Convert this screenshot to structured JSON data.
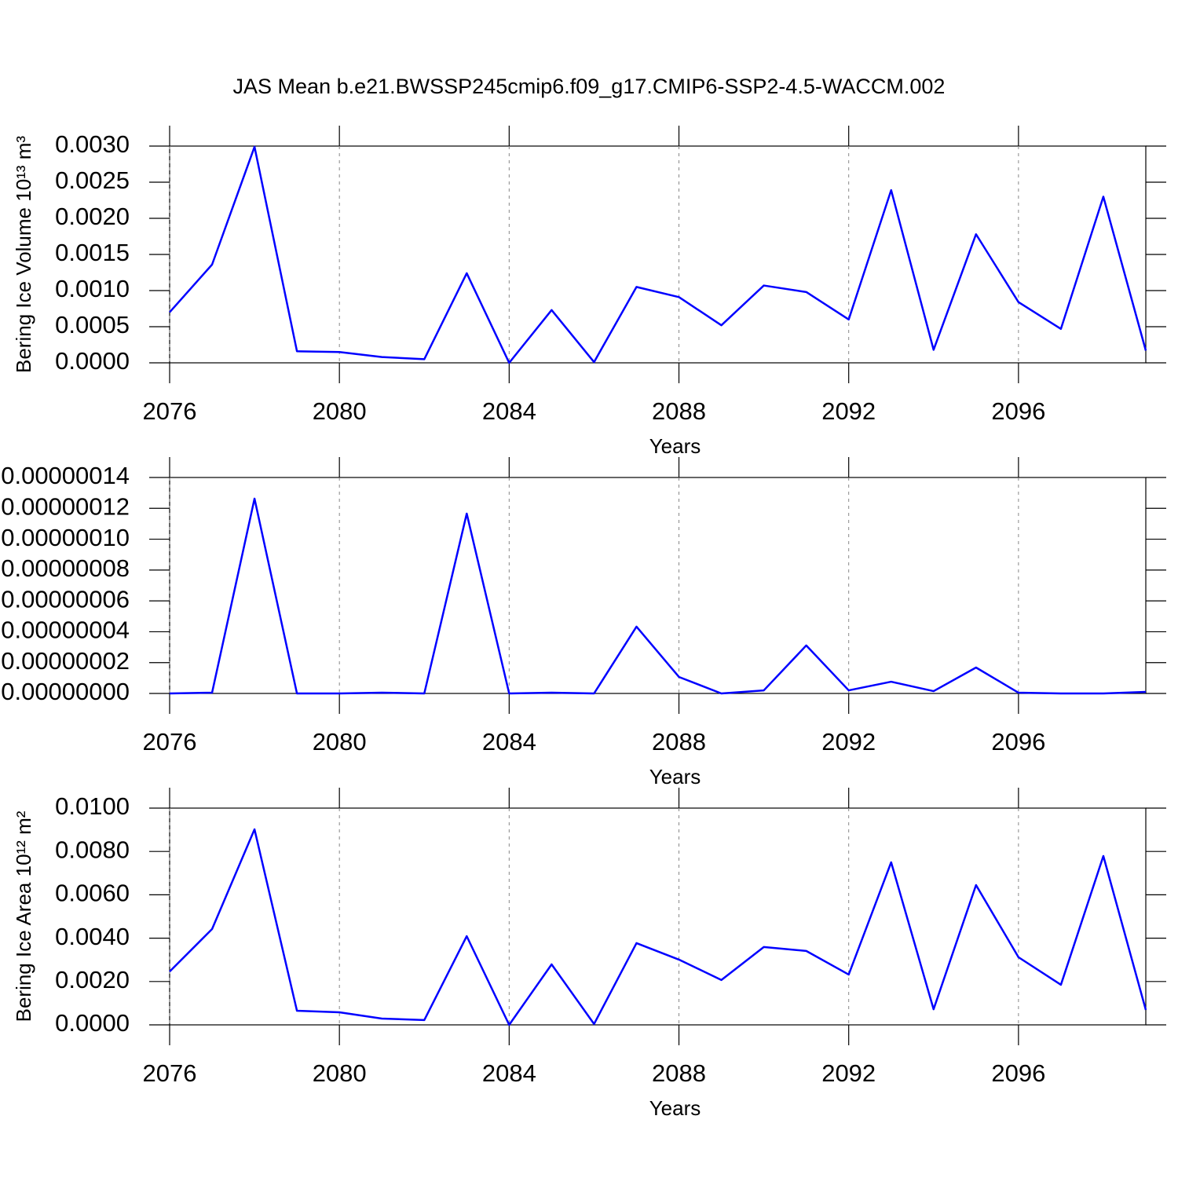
{
  "chart_data": [
    {
      "type": "line",
      "title": "JAS Mean b.e21.BWSSP245cmip6.f09_g17.CMIP6-SSP2-4.5-WACCM.002",
      "ylabel": "Bering Ice Volume 10¹³ m³",
      "xlabel": "Years",
      "grid": true,
      "x": [
        2076,
        2077,
        2078,
        2079,
        2080,
        2081,
        2082,
        2083,
        2084,
        2085,
        2086,
        2087,
        2088,
        2089,
        2090,
        2091,
        2092,
        2093,
        2094,
        2095,
        2096,
        2097,
        2098,
        2099
      ],
      "series": [
        {
          "color": "#0000ff",
          "values": [
            0.0007,
            0.00136,
            0.00299,
            0.00016,
            0.00015,
            8e-05,
            5e-05,
            0.00124,
            0.0,
            0.00073,
            1e-05,
            0.00105,
            0.00091,
            0.00052,
            0.00107,
            0.00098,
            0.0006,
            0.00239,
            0.00018,
            0.00178,
            0.00084,
            0.00047,
            0.0023,
            0.00017
          ]
        }
      ],
      "xlim": [
        2076,
        2099
      ],
      "xticks": [
        2076,
        2080,
        2084,
        2088,
        2092,
        2096
      ],
      "ylim": [
        0,
        0.003
      ],
      "yticks": [
        {
          "value": 0,
          "label": "0.0000"
        },
        {
          "value": 0.0005,
          "label": "0.0005"
        },
        {
          "value": 0.001,
          "label": "0.0010"
        },
        {
          "value": 0.0015,
          "label": "0.0015"
        },
        {
          "value": 0.002,
          "label": "0.0020"
        },
        {
          "value": 0.0025,
          "label": "0.0025"
        },
        {
          "value": 0.003,
          "label": "0.0030"
        }
      ]
    },
    {
      "type": "line",
      "xlabel": "Years",
      "grid": true,
      "x": [
        2076,
        2077,
        2078,
        2079,
        2080,
        2081,
        2082,
        2083,
        2084,
        2085,
        2086,
        2087,
        2088,
        2089,
        2090,
        2091,
        2092,
        2093,
        2094,
        2095,
        2096,
        2097,
        2098,
        2099
      ],
      "series": [
        {
          "color": "#0000ff",
          "values": [
            0,
            5e-10,
            1.263e-07,
            0,
            0,
            5e-10,
            0,
            1.166e-07,
            0,
            5e-10,
            0,
            4.33e-08,
            1.07e-08,
            0,
            2e-09,
            3.11e-08,
            2e-09,
            7.6e-09,
            1.5e-09,
            1.68e-08,
            5e-10,
            0,
            0,
            1e-09
          ]
        }
      ],
      "xlim": [
        2076,
        2099
      ],
      "xticks": [
        2076,
        2080,
        2084,
        2088,
        2092,
        2096
      ],
      "ylim": [
        0,
        1.4e-07
      ],
      "yticks": [
        {
          "value": 0,
          "label": "0.00000000"
        },
        {
          "value": 2e-08,
          "label": "0.00000002"
        },
        {
          "value": 4e-08,
          "label": "0.00000004"
        },
        {
          "value": 6e-08,
          "label": "0.00000006"
        },
        {
          "value": 8e-08,
          "label": "0.00000008"
        },
        {
          "value": 1e-07,
          "label": "0.00000010"
        },
        {
          "value": 1.2e-07,
          "label": "0.00000012"
        },
        {
          "value": 1.4e-07,
          "label": "0.00000014"
        }
      ]
    },
    {
      "type": "line",
      "ylabel": "Bering Ice Area 10¹² m²",
      "xlabel": "Years",
      "grid": true,
      "x": [
        2076,
        2077,
        2078,
        2079,
        2080,
        2081,
        2082,
        2083,
        2084,
        2085,
        2086,
        2087,
        2088,
        2089,
        2090,
        2091,
        2092,
        2093,
        2094,
        2095,
        2096,
        2097,
        2098,
        2099
      ],
      "series": [
        {
          "color": "#0000ff",
          "values": [
            0.00246,
            0.00442,
            0.00902,
            0.00065,
            0.00058,
            0.00029,
            0.00022,
            0.00409,
            0.0,
            0.00279,
            4e-05,
            0.00377,
            0.00301,
            0.00207,
            0.00359,
            0.00341,
            0.00232,
            0.0075,
            0.00072,
            0.00645,
            0.00312,
            0.00185,
            0.00779,
            0.00069
          ]
        }
      ],
      "xlim": [
        2076,
        2099
      ],
      "xticks": [
        2076,
        2080,
        2084,
        2088,
        2092,
        2096
      ],
      "ylim": [
        0,
        0.01
      ],
      "yticks": [
        {
          "value": 0,
          "label": "0.0000"
        },
        {
          "value": 0.002,
          "label": "0.0020"
        },
        {
          "value": 0.004,
          "label": "0.0040"
        },
        {
          "value": 0.006,
          "label": "0.0060"
        },
        {
          "value": 0.008,
          "label": "0.0080"
        },
        {
          "value": 0.01,
          "label": "0.0100"
        }
      ]
    }
  ]
}
